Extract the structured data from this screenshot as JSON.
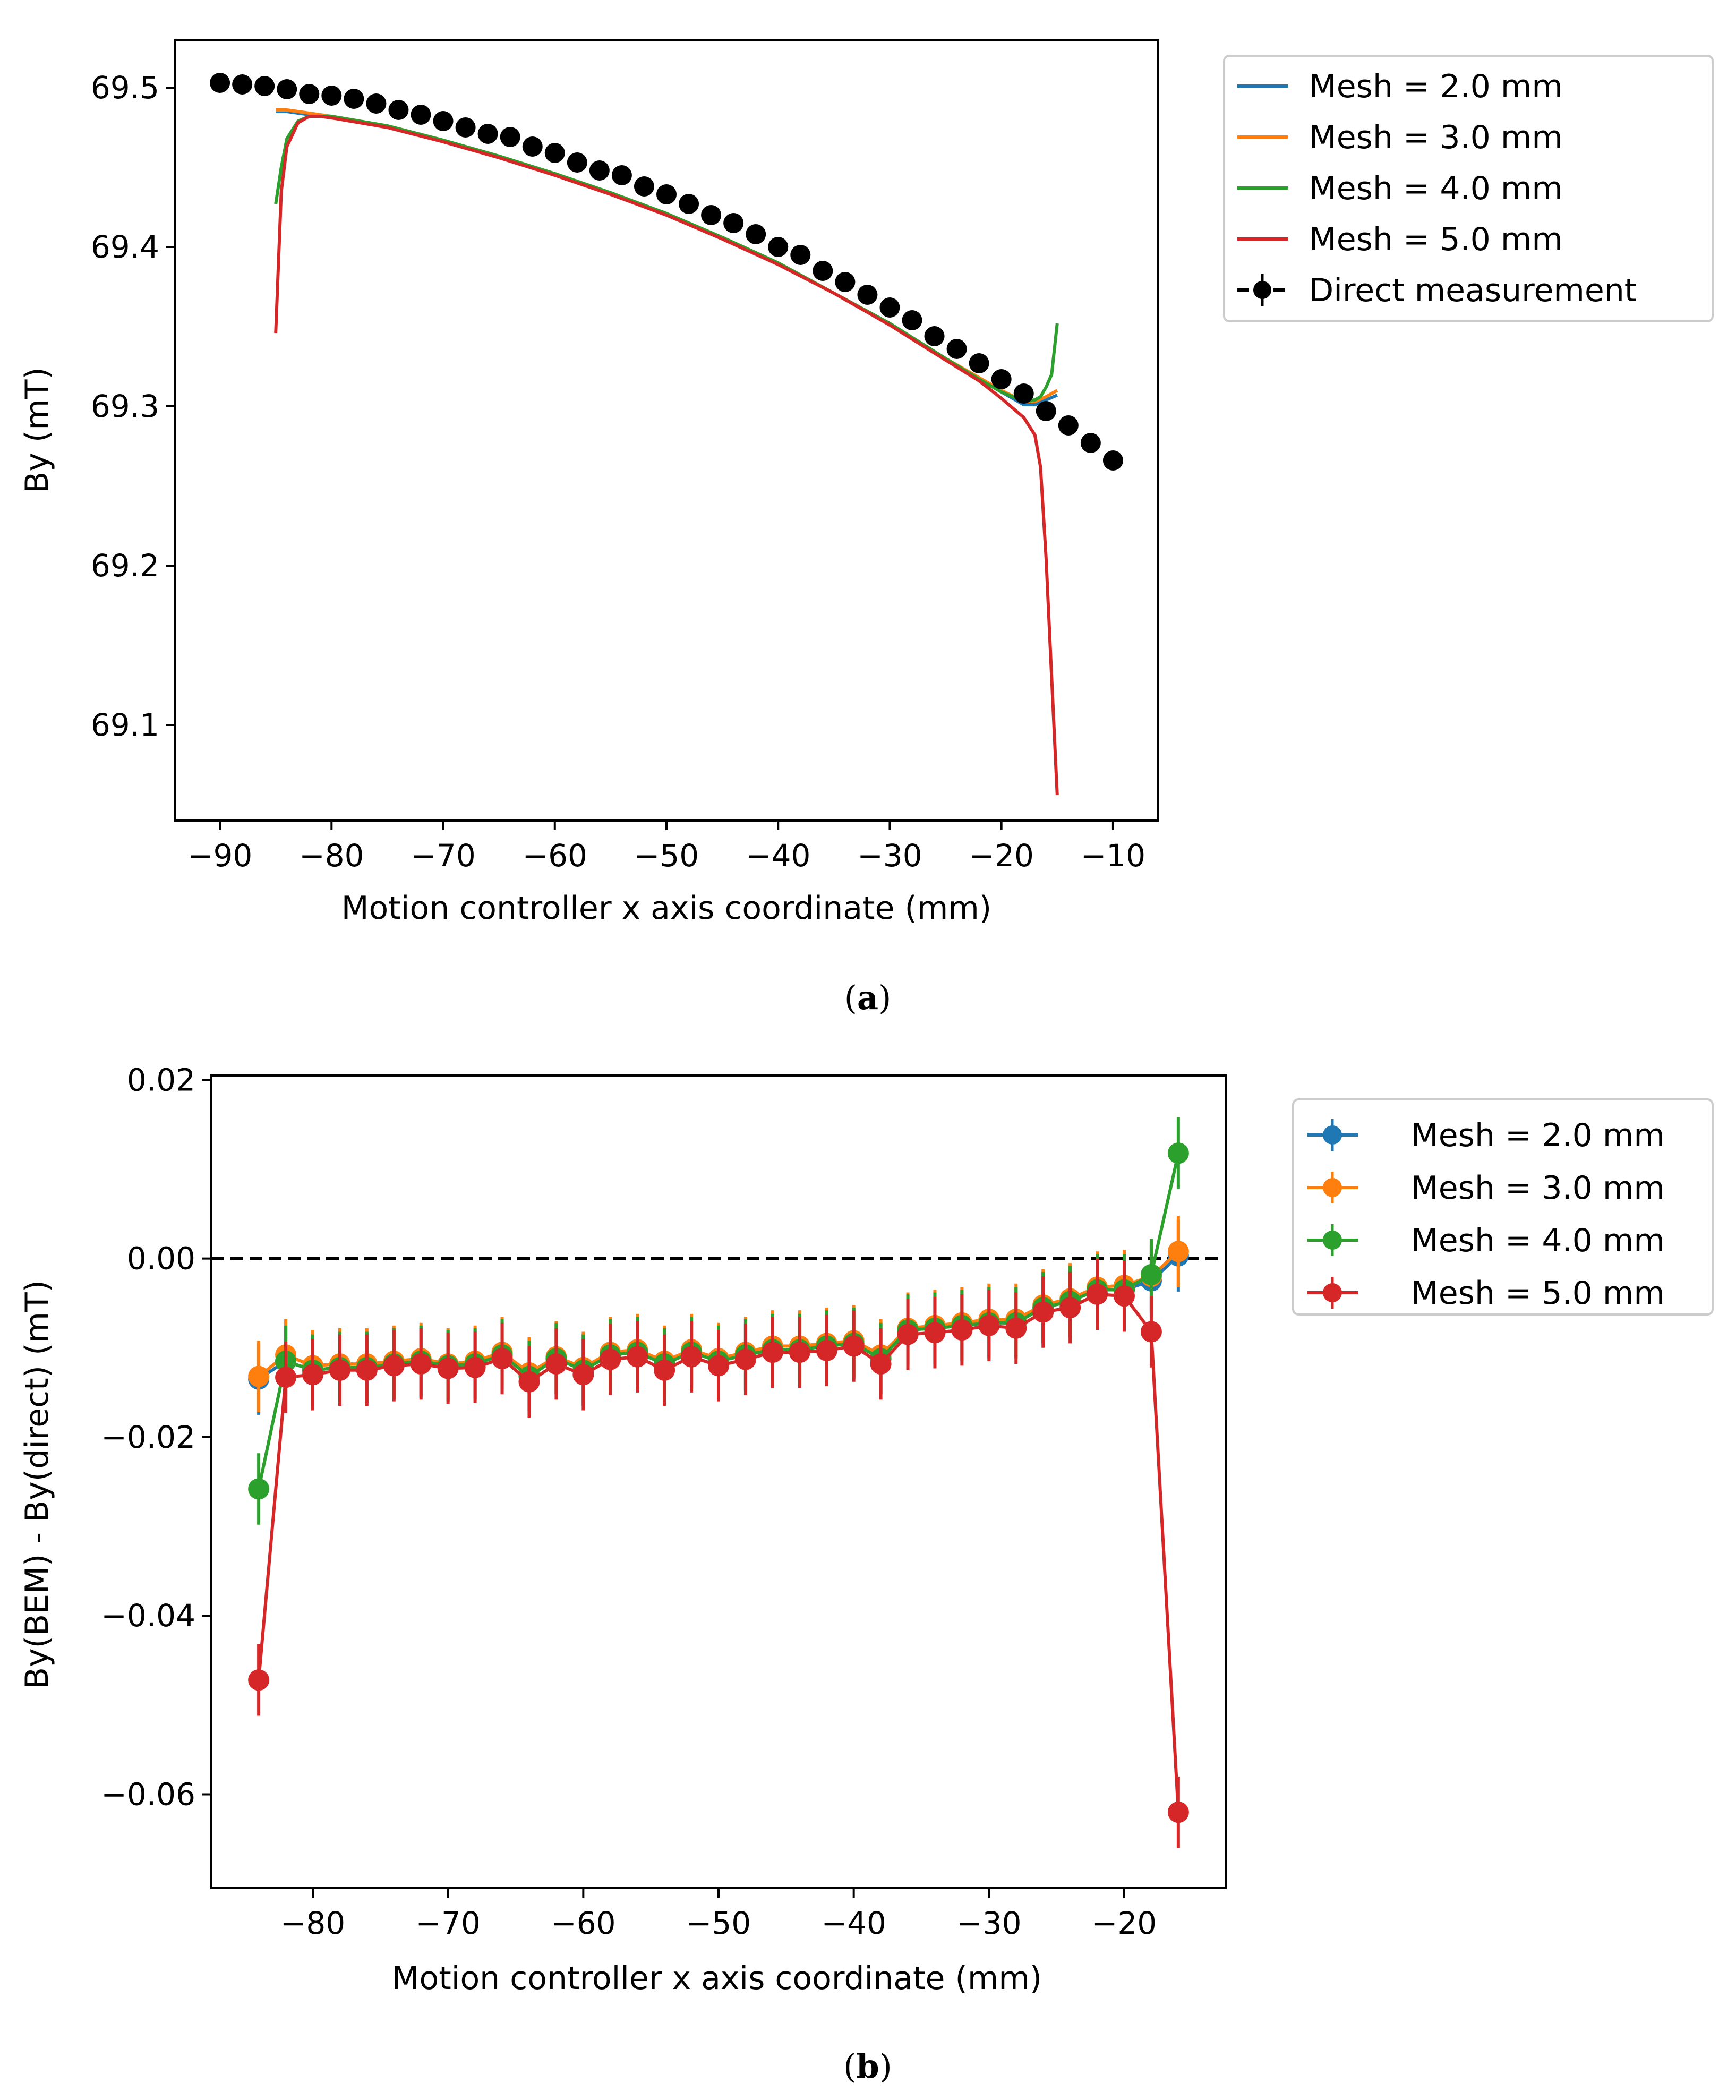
{
  "chart_data": [
    {
      "panel": "a",
      "caption_letter": "a",
      "type": "line",
      "xlabel": "Motion controller x axis coordinate (mm)",
      "ylabel": "By (mT)",
      "xlim": [
        -94,
        -6
      ],
      "ylim": [
        69.04,
        69.53
      ],
      "xticks": [
        -90,
        -80,
        -70,
        -60,
        -50,
        -40,
        -30,
        -20,
        -10
      ],
      "xtick_labels": [
        "−90",
        "−80",
        "−70",
        "−60",
        "−50",
        "−40",
        "−30",
        "−20",
        "−10"
      ],
      "yticks": [
        69.1,
        69.2,
        69.3,
        69.4,
        69.5
      ],
      "ytick_labels": [
        "69.1",
        "69.2",
        "69.3",
        "69.4",
        "69.5"
      ],
      "legend_position": "outside top-right",
      "series": [
        {
          "name": "Mesh = 2.0 mm",
          "color": "#1f77b4",
          "kind": "line",
          "x": [
            -85,
            -84,
            -83,
            -82,
            -80,
            -75,
            -70,
            -65,
            -60,
            -55,
            -50,
            -45,
            -40,
            -35,
            -30,
            -25,
            -22,
            -20,
            -18,
            -17,
            -16,
            -15
          ],
          "y": [
            69.485,
            69.485,
            69.484,
            69.483,
            69.481,
            69.476,
            69.467,
            69.457,
            69.446,
            69.434,
            69.421,
            69.406,
            69.39,
            69.371,
            69.352,
            69.33,
            69.317,
            69.309,
            69.301,
            69.301,
            69.304,
            69.307
          ]
        },
        {
          "name": "Mesh = 3.0 mm",
          "color": "#ff7f0e",
          "kind": "line",
          "x": [
            -85,
            -84,
            -83,
            -82,
            -80,
            -75,
            -70,
            -65,
            -60,
            -55,
            -50,
            -45,
            -40,
            -35,
            -30,
            -25,
            -22,
            -20,
            -18,
            -17,
            -16,
            -15
          ],
          "y": [
            69.486,
            69.486,
            69.485,
            69.484,
            69.482,
            69.476,
            69.467,
            69.457,
            69.446,
            69.434,
            69.421,
            69.406,
            69.39,
            69.371,
            69.352,
            69.33,
            69.318,
            69.31,
            69.303,
            69.303,
            69.306,
            69.31
          ]
        },
        {
          "name": "Mesh = 4.0 mm",
          "color": "#2ca02c",
          "kind": "line",
          "x": [
            -85,
            -84.5,
            -84,
            -83,
            -82,
            -80,
            -75,
            -70,
            -65,
            -60,
            -55,
            -50,
            -45,
            -40,
            -35,
            -30,
            -25,
            -22,
            -20,
            -18,
            -17,
            -16.5,
            -16,
            -15.5,
            -15
          ],
          "y": [
            69.427,
            69.45,
            69.468,
            69.479,
            69.482,
            69.482,
            69.476,
            69.467,
            69.457,
            69.446,
            69.434,
            69.421,
            69.406,
            69.39,
            69.371,
            69.352,
            69.33,
            69.317,
            69.309,
            69.303,
            69.304,
            69.306,
            69.312,
            69.32,
            69.352
          ]
        },
        {
          "name": "Mesh = 5.0 mm",
          "color": "#d62728",
          "kind": "line",
          "x": [
            -85,
            -84.5,
            -84,
            -83,
            -82,
            -81,
            -80,
            -75,
            -70,
            -65,
            -60,
            -55,
            -50,
            -45,
            -40,
            -35,
            -30,
            -25,
            -22,
            -20,
            -18,
            -17,
            -16.5,
            -16,
            -15.5,
            -15
          ],
          "y": [
            69.346,
            69.435,
            69.463,
            69.478,
            69.482,
            69.482,
            69.481,
            69.475,
            69.466,
            69.456,
            69.445,
            69.433,
            69.42,
            69.405,
            69.389,
            69.371,
            69.351,
            69.329,
            69.316,
            69.305,
            69.293,
            69.282,
            69.262,
            69.205,
            69.13,
            69.056
          ]
        },
        {
          "name": "Direct measurement",
          "color": "#000000",
          "kind": "points_dashed",
          "x": [
            -90,
            -88,
            -86,
            -84,
            -82,
            -80,
            -78,
            -76,
            -74,
            -72,
            -70,
            -68,
            -66,
            -64,
            -62,
            -60,
            -58,
            -56,
            -54,
            -52,
            -50,
            -48,
            -46,
            -44,
            -42,
            -40,
            -38,
            -36,
            -34,
            -32,
            -30,
            -28,
            -26,
            -24,
            -22,
            -20,
            -18,
            -16,
            -14,
            -12,
            -10
          ],
          "y": [
            69.503,
            69.502,
            69.501,
            69.499,
            69.496,
            69.495,
            69.493,
            69.49,
            69.486,
            69.483,
            69.479,
            69.475,
            69.471,
            69.469,
            69.463,
            69.459,
            69.453,
            69.448,
            69.445,
            69.438,
            69.433,
            69.427,
            69.42,
            69.415,
            69.408,
            69.4,
            69.395,
            69.385,
            69.378,
            69.37,
            69.362,
            69.354,
            69.344,
            69.336,
            69.327,
            69.317,
            69.308,
            69.297,
            69.288,
            69.277,
            69.266
          ]
        }
      ]
    },
    {
      "panel": "b",
      "caption_letter": "b",
      "type": "line",
      "xlabel": "Motion controller x axis coordinate (mm)",
      "ylabel": "By(BEM) - By(direct) (mT)",
      "xlim": [
        -87.5,
        -12.5
      ],
      "ylim": [
        -0.0705,
        0.0205
      ],
      "xticks": [
        -80,
        -70,
        -60,
        -50,
        -40,
        -30,
        -20
      ],
      "xtick_labels": [
        "−80",
        "−70",
        "−60",
        "−50",
        "−40",
        "−30",
        "−20"
      ],
      "yticks": [
        -0.06,
        -0.04,
        -0.02,
        0.0,
        0.02
      ],
      "ytick_labels": [
        "−0.06",
        "−0.04",
        "−0.02",
        "0.00",
        "0.02"
      ],
      "reference_line": {
        "y": 0.0,
        "style": "dashed",
        "color": "#000000"
      },
      "error_bar": 0.004,
      "legend_position": "outside top-right",
      "x": [
        -84,
        -82,
        -80,
        -78,
        -76,
        -74,
        -72,
        -70,
        -68,
        -66,
        -64,
        -62,
        -60,
        -58,
        -56,
        -54,
        -52,
        -50,
        -48,
        -46,
        -44,
        -42,
        -40,
        -38,
        -36,
        -34,
        -32,
        -30,
        -28,
        -26,
        -24,
        -22,
        -20,
        -18,
        -16
      ],
      "series": [
        {
          "name": "Mesh = 2.0 mm",
          "color": "#1f77b4",
          "values": [
            -0.0135,
            -0.0115,
            -0.0125,
            -0.0122,
            -0.0122,
            -0.0118,
            -0.0115,
            -0.012,
            -0.0118,
            -0.0108,
            -0.013,
            -0.0112,
            -0.0125,
            -0.0108,
            -0.0105,
            -0.0118,
            -0.0105,
            -0.0115,
            -0.0108,
            -0.0102,
            -0.0102,
            -0.0098,
            -0.0095,
            -0.0112,
            -0.008,
            -0.0078,
            -0.0075,
            -0.0072,
            -0.0072,
            -0.0055,
            -0.0048,
            -0.0035,
            -0.0035,
            -0.0025,
            0.0003
          ]
        },
        {
          "name": "Mesh = 3.0 mm",
          "color": "#ff7f0e",
          "values": [
            -0.0132,
            -0.0108,
            -0.012,
            -0.0118,
            -0.0118,
            -0.0115,
            -0.0112,
            -0.0118,
            -0.0115,
            -0.0105,
            -0.0128,
            -0.011,
            -0.0122,
            -0.0105,
            -0.0102,
            -0.0115,
            -0.0102,
            -0.0112,
            -0.0105,
            -0.0098,
            -0.0098,
            -0.0095,
            -0.0092,
            -0.0108,
            -0.0078,
            -0.0075,
            -0.0072,
            -0.0068,
            -0.0068,
            -0.0052,
            -0.0045,
            -0.0032,
            -0.003,
            -0.002,
            0.0008
          ]
        },
        {
          "name": "Mesh = 4.0 mm",
          "color": "#2ca02c",
          "values": [
            -0.0258,
            -0.0115,
            -0.0125,
            -0.0122,
            -0.0122,
            -0.0118,
            -0.0115,
            -0.012,
            -0.0118,
            -0.0108,
            -0.0132,
            -0.0112,
            -0.0125,
            -0.0108,
            -0.0105,
            -0.0118,
            -0.0105,
            -0.0115,
            -0.0108,
            -0.0102,
            -0.0102,
            -0.0098,
            -0.0095,
            -0.0112,
            -0.008,
            -0.0078,
            -0.0075,
            -0.0072,
            -0.0072,
            -0.0055,
            -0.0048,
            -0.0035,
            -0.0035,
            -0.0018,
            0.0118
          ]
        },
        {
          "name": "Mesh = 5.0 mm",
          "color": "#d62728",
          "values": [
            -0.0472,
            -0.0133,
            -0.013,
            -0.0125,
            -0.0125,
            -0.012,
            -0.0118,
            -0.0123,
            -0.0122,
            -0.0112,
            -0.0138,
            -0.0118,
            -0.013,
            -0.0113,
            -0.011,
            -0.0125,
            -0.011,
            -0.012,
            -0.0113,
            -0.0105,
            -0.0105,
            -0.0103,
            -0.0098,
            -0.0118,
            -0.0085,
            -0.0083,
            -0.008,
            -0.0075,
            -0.0078,
            -0.006,
            -0.0055,
            -0.004,
            -0.0042,
            -0.0082,
            -0.062
          ]
        }
      ]
    }
  ]
}
